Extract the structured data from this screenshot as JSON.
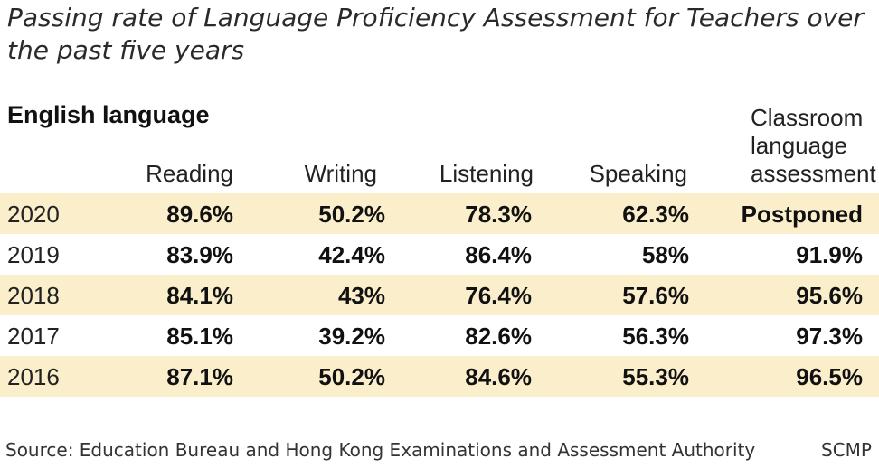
{
  "chart_data": {
    "type": "table",
    "title": "Passing rate of Language Proficiency Assessment for Teachers over the past five years",
    "section": "English language",
    "columns": [
      "Reading",
      "Writing",
      "Listening",
      "Speaking",
      "Classroom language assessment"
    ],
    "rows": [
      {
        "year": "2020",
        "values": [
          "89.6%",
          "50.2%",
          "78.3%",
          "62.3%",
          "Postponed"
        ]
      },
      {
        "year": "2019",
        "values": [
          "83.9%",
          "42.4%",
          "86.4%",
          "58%",
          "91.9%"
        ]
      },
      {
        "year": "2018",
        "values": [
          "84.1%",
          "43%",
          "76.4%",
          "57.6%",
          "95.6%"
        ]
      },
      {
        "year": "2017",
        "values": [
          "85.1%",
          "39.2%",
          "82.6%",
          "56.3%",
          "97.3%"
        ]
      },
      {
        "year": "2016",
        "values": [
          "87.1%",
          "50.2%",
          "84.6%",
          "55.3%",
          "96.5%"
        ]
      }
    ],
    "shading_color": "#fbeecb"
  },
  "footer": {
    "source": "Source: Education Bureau and Hong Kong Examinations and Assessment Authority",
    "credit": "SCMP"
  }
}
